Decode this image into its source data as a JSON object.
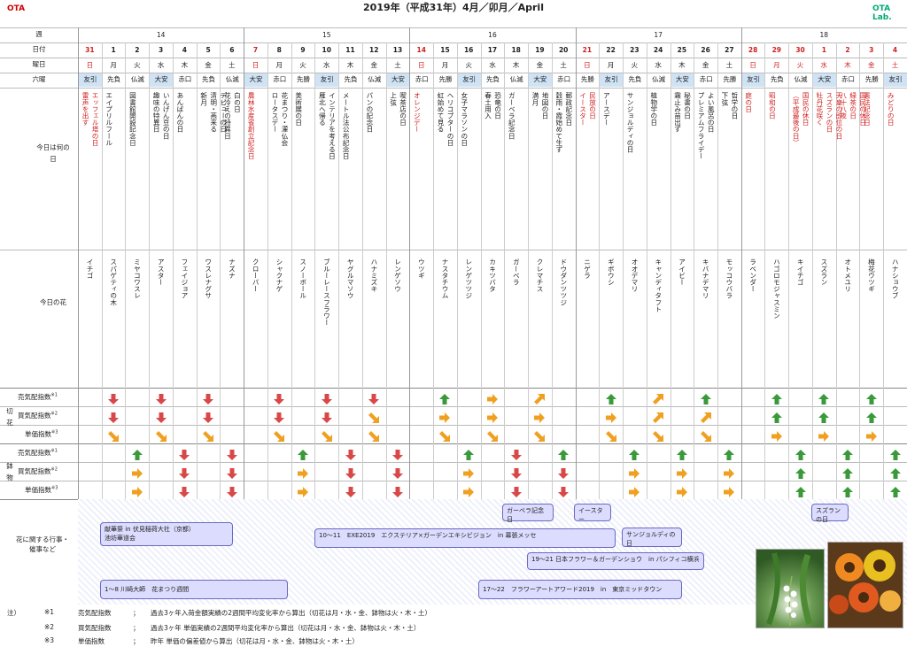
{
  "header": {
    "title": "2019年（平成31年）4月／卯月／April",
    "logo_left": "OTA",
    "logo_right": "OTA Lab."
  },
  "labels": {
    "week": "週",
    "date": "日付",
    "weekday": "曜日",
    "rokuyo": "六曜",
    "today": "今日は何の日",
    "flower": "今日の花",
    "cut": "切花",
    "pot": "鉢物",
    "sell": "売気配指数",
    "buy": "買気配指数",
    "price": "単価指数",
    "events": "花に関する行事・催事など",
    "sup1": "※1",
    "sup2": "※2",
    "sup3": "※3"
  },
  "weeks": [
    {
      "label": "14",
      "start": 0,
      "end": 7
    },
    {
      "label": "15",
      "start": 7,
      "end": 14
    },
    {
      "label": "16",
      "start": 14,
      "end": 21
    },
    {
      "label": "17",
      "start": 21,
      "end": 28
    },
    {
      "label": "18",
      "start": 28,
      "end": 35
    }
  ],
  "days": [
    {
      "date": "31",
      "wd": "日",
      "ro": "友引",
      "today": "エッフェル塔の日\n雷声を出す",
      "flower": "イチゴ",
      "cs": "",
      "cb": "",
      "cp": "",
      "ps": "",
      "pb": "",
      "pp": "",
      "red": true,
      "blue": false
    },
    {
      "date": "1",
      "wd": "月",
      "ro": "先負",
      "today": "エイプリルフール",
      "flower": "スパゲティの木",
      "cs": "down",
      "cb": "down",
      "cp": "dr",
      "ps": "",
      "pb": "",
      "pp": "",
      "red": false
    },
    {
      "date": "2",
      "wd": "火",
      "ro": "仏滅",
      "today": "図書館開設記念日",
      "flower": "ミヤコワスレ",
      "cs": "",
      "cb": "",
      "cp": "",
      "ps": "up",
      "pb": "right",
      "pp": "right",
      "red": false
    },
    {
      "date": "3",
      "wd": "水",
      "ro": "大安",
      "today": "いんげん豆の日\n趣味の特異日",
      "flower": "アスター",
      "cs": "down",
      "cb": "down",
      "cp": "dr",
      "ps": "",
      "pb": "",
      "pp": "",
      "red": false
    },
    {
      "date": "4",
      "wd": "木",
      "ro": "赤口",
      "today": "あんぱんの日",
      "flower": "フェイジョア",
      "cs": "",
      "cb": "",
      "cp": "",
      "ps": "down",
      "pb": "down",
      "pp": "down",
      "red": false
    },
    {
      "date": "5",
      "wd": "金",
      "ro": "先負",
      "today": "デビューの日\n清明・燕来る\n新月",
      "flower": "ワスレナグサ",
      "cs": "down",
      "cb": "down",
      "cp": "dr",
      "ps": "",
      "pb": "",
      "pp": "",
      "red": false
    },
    {
      "date": "6",
      "wd": "土",
      "ro": "仏滅",
      "today": "白の日\n花冷えの特異日",
      "flower": "ナズナ",
      "cs": "",
      "cb": "",
      "cp": "",
      "ps": "down",
      "pb": "down",
      "pp": "down",
      "red": false
    },
    {
      "date": "7",
      "wd": "日",
      "ro": "大安",
      "today": "農林水産省創立記念日",
      "flower": "クローバー",
      "cs": "",
      "cb": "",
      "cp": "",
      "ps": "",
      "pb": "",
      "pp": "",
      "red": true
    },
    {
      "date": "8",
      "wd": "月",
      "ro": "赤口",
      "today": "花まつり・灌仏会\nロータスデー",
      "flower": "シャクナゲ",
      "cs": "down",
      "cb": "down",
      "cp": "dr",
      "ps": "",
      "pb": "",
      "pp": "",
      "red": false
    },
    {
      "date": "9",
      "wd": "火",
      "ro": "先勝",
      "today": "美術展の日",
      "flower": "スノーボール",
      "cs": "",
      "cb": "",
      "cp": "",
      "ps": "up",
      "pb": "right",
      "pp": "right",
      "red": false
    },
    {
      "date": "10",
      "wd": "水",
      "ro": "友引",
      "today": "インテリアを考える日\n雁北へ帰る",
      "flower": "ブルーレースフラワー",
      "cs": "down",
      "cb": "down",
      "cp": "dr",
      "ps": "",
      "pb": "",
      "pp": "",
      "red": false
    },
    {
      "date": "11",
      "wd": "木",
      "ro": "先負",
      "today": "メートル法公布記念日",
      "flower": "ヤグルマソウ",
      "cs": "",
      "cb": "",
      "cp": "",
      "ps": "down",
      "pb": "down",
      "pp": "down",
      "red": false
    },
    {
      "date": "12",
      "wd": "金",
      "ro": "仏滅",
      "today": "パンの記念日",
      "flower": "ハナミズキ",
      "cs": "down",
      "cb": "dr",
      "cp": "dr",
      "ps": "",
      "pb": "",
      "pp": "",
      "red": false
    },
    {
      "date": "13",
      "wd": "土",
      "ro": "大安",
      "today": "喫茶店の日\n上弦",
      "flower": "レンゲソウ",
      "cs": "",
      "cb": "",
      "cp": "",
      "ps": "down",
      "pb": "down",
      "pp": "down",
      "red": false
    },
    {
      "date": "14",
      "wd": "日",
      "ro": "赤口",
      "today": "オレンジデー",
      "flower": "ウツギ",
      "cs": "",
      "cb": "",
      "cp": "",
      "ps": "",
      "pb": "",
      "pp": "",
      "red": true
    },
    {
      "date": "15",
      "wd": "月",
      "ro": "先勝",
      "today": "ヘリコプターの日\n虹始めて見る",
      "flower": "ナスタチウム",
      "cs": "up",
      "cb": "right",
      "cp": "dr",
      "ps": "",
      "pb": "",
      "pp": "",
      "red": false
    },
    {
      "date": "16",
      "wd": "火",
      "ro": "友引",
      "today": "女子マラソンの日",
      "flower": "レンゲツツジ",
      "cs": "",
      "cb": "",
      "cp": "",
      "ps": "up",
      "pb": "right",
      "pp": "right",
      "red": false
    },
    {
      "date": "17",
      "wd": "水",
      "ro": "先負",
      "today": "恐竜の日\n春土用入",
      "flower": "カキツバタ",
      "cs": "right",
      "cb": "right",
      "cp": "dr",
      "ps": "",
      "pb": "",
      "pp": "",
      "red": false
    },
    {
      "date": "18",
      "wd": "木",
      "ro": "仏滅",
      "today": "ガーベラ記念日",
      "flower": "ガーベラ",
      "cs": "",
      "cb": "",
      "cp": "",
      "ps": "down",
      "pb": "down",
      "pp": "down",
      "red": false
    },
    {
      "date": "19",
      "wd": "金",
      "ro": "大安",
      "today": "地図の日\n満月",
      "flower": "クレマチス",
      "cs": "ur",
      "cb": "right",
      "cp": "dr",
      "ps": "",
      "pb": "",
      "pp": "",
      "red": false
    },
    {
      "date": "20",
      "wd": "土",
      "ro": "赤口",
      "today": "郵政記念日\n穀雨・霞始めて生ず",
      "flower": "ドウダンツツジ",
      "cs": "",
      "cb": "",
      "cp": "",
      "ps": "up",
      "pb": "down",
      "pp": "down",
      "red": false
    },
    {
      "date": "21",
      "wd": "日",
      "ro": "先勝",
      "today": "民放の日\nイースター",
      "flower": "ニゲラ",
      "cs": "",
      "cb": "",
      "cp": "",
      "ps": "",
      "pb": "",
      "pp": "",
      "red": true
    },
    {
      "date": "22",
      "wd": "月",
      "ro": "友引",
      "today": "アースデー",
      "flower": "ギボウシ",
      "cs": "up",
      "cb": "right",
      "cp": "dr",
      "ps": "",
      "pb": "",
      "pp": "",
      "red": false
    },
    {
      "date": "23",
      "wd": "火",
      "ro": "先負",
      "today": "サンジョルディの日",
      "flower": "オオデマリ",
      "cs": "",
      "cb": "",
      "cp": "",
      "ps": "up",
      "pb": "right",
      "pp": "right",
      "red": false
    },
    {
      "date": "24",
      "wd": "水",
      "ro": "仏滅",
      "today": "植物学の日",
      "flower": "キャンディタフト",
      "cs": "ur",
      "cb": "ur",
      "cp": "dr",
      "ps": "",
      "pb": "",
      "pp": "",
      "red": false
    },
    {
      "date": "25",
      "wd": "木",
      "ro": "大安",
      "today": "秘書の日\n霜止み苗出ず",
      "flower": "アイビー",
      "cs": "",
      "cb": "",
      "cp": "",
      "ps": "up",
      "pb": "right",
      "pp": "right",
      "red": false
    },
    {
      "date": "26",
      "wd": "金",
      "ro": "赤口",
      "today": "よい風呂の日\nプレミアムフライデー",
      "flower": "キバナデマリ",
      "cs": "up",
      "cb": "ur",
      "cp": "dr",
      "ps": "",
      "pb": "",
      "pp": "",
      "red": false
    },
    {
      "date": "27",
      "wd": "土",
      "ro": "先勝",
      "today": "哲学の日\n下弦",
      "flower": "モッコウバラ",
      "cs": "",
      "cb": "",
      "cp": "",
      "ps": "up",
      "pb": "right",
      "pp": "right",
      "red": false
    },
    {
      "date": "28",
      "wd": "日",
      "ro": "友引",
      "today": "庭の日",
      "flower": "ラベンダー",
      "cs": "",
      "cb": "",
      "cp": "",
      "ps": "",
      "pb": "",
      "pp": "",
      "red": true
    },
    {
      "date": "29",
      "wd": "月",
      "ro": "先負",
      "today": "昭和の日",
      "flower": "ハゴロモジャスミン",
      "cs": "up",
      "cb": "up",
      "cp": "right",
      "ps": "",
      "pb": "",
      "pp": "",
      "red": true
    },
    {
      "date": "30",
      "wd": "火",
      "ro": "仏滅",
      "today": "国民の休日\n（平成最後の日）",
      "flower": "キイチゴ",
      "cs": "",
      "cb": "",
      "cp": "",
      "ps": "up",
      "pb": "up",
      "pp": "up",
      "red": true
    },
    {
      "date": "1",
      "wd": "水",
      "ro": "大安",
      "today": "天皇の即位の日\nスズランの日\n牡丹花咲く",
      "flower": "スズラン",
      "cs": "up",
      "cb": "up",
      "cp": "right",
      "ps": "",
      "pb": "",
      "pp": "",
      "red": true
    },
    {
      "date": "2",
      "wd": "木",
      "ro": "赤口",
      "today": "国民の休日\n緑茶の日\n八十八夜",
      "flower": "オトメユリ",
      "cs": "",
      "cb": "",
      "cp": "",
      "ps": "up",
      "pb": "up",
      "pp": "up",
      "red": true
    },
    {
      "date": "3",
      "wd": "金",
      "ro": "先勝",
      "today": "憲法記念日",
      "flower": "梅花ウツギ",
      "cs": "up",
      "cb": "up",
      "cp": "right",
      "ps": "",
      "pb": "",
      "pp": "",
      "red": true
    },
    {
      "date": "4",
      "wd": "土",
      "ro": "友引",
      "today": "みどりの日",
      "flower": "ハナショウブ",
      "cs": "",
      "cb": "",
      "cp": "",
      "ps": "up",
      "pb": "up",
      "pp": "up",
      "red": true
    }
  ],
  "events": [
    {
      "text": "献華祭 in 伏見稲荷大社（京都）\n池坊華道会"
    },
    {
      "text": "10〜11　EXE2019　エクステリア×ガーデンエキシビジョン　in 幕張メッセ"
    },
    {
      "text": "1〜8 川崎大師　花まつり週間"
    },
    {
      "text": "ガーベラ記念日"
    },
    {
      "text": "イースター"
    },
    {
      "text": "サンジョルディの日"
    },
    {
      "text": "19〜21 日本フラワー＆ガーデンショウ　in パシフィコ横浜"
    },
    {
      "text": "17〜22　フラワーアートアワード2019　in　東京ミッドタウン"
    },
    {
      "text": "スズランの日"
    }
  ],
  "notes": {
    "prefix": "注）",
    "r1": {
      "n": "※1",
      "label": "売気配指数",
      "colon": "；",
      "text": "過去3ヶ年入荷金額実績の2週間平均変化率から算出（切花は月・水・金、鉢物は火・木・土）"
    },
    "r2": {
      "n": "※2",
      "label": "買気配指数",
      "colon": "；",
      "text": "過去3ヶ年 単価実績の2週間平均変化率から算出（切花は月・水・金、鉢物は火・木・土）"
    },
    "r3": {
      "n": "※3",
      "label": "単価指数",
      "colon": "；",
      "text": "昨年 単価の偏差値から算出（切花は月・水・金、鉢物は火・木・土）"
    }
  },
  "colors": {
    "up": "#3a9a3a",
    "down": "#d94848",
    "side": "#f0a020",
    "blue": "#2a74c4",
    "red": "#d02020"
  }
}
